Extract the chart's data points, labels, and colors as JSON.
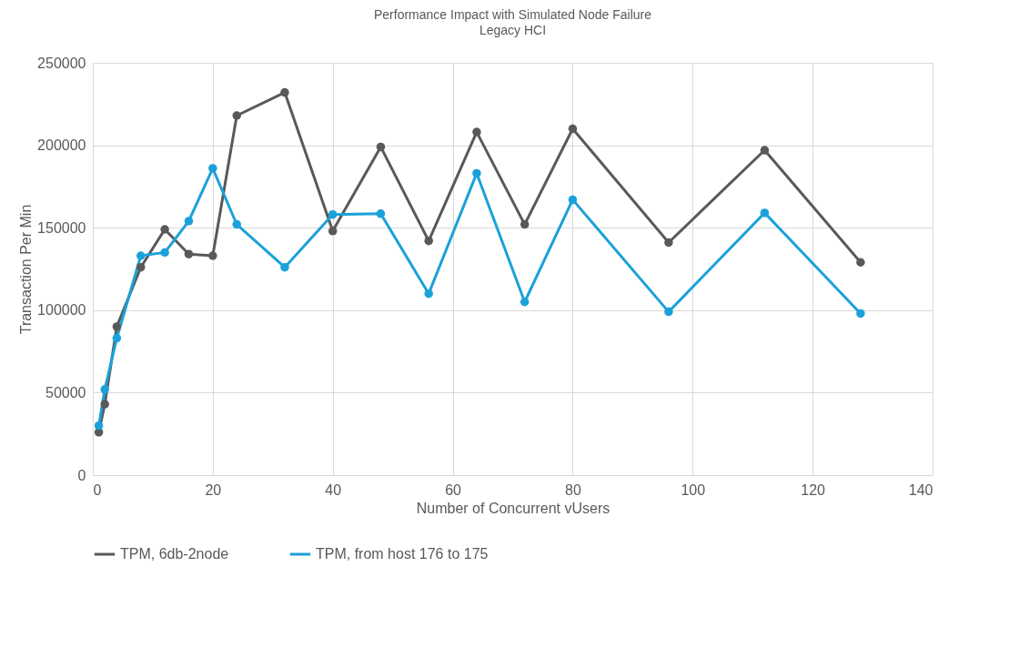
{
  "chart_data": {
    "type": "line",
    "title": "Performance Impact with Simulated Node Failure",
    "subtitle": "Legacy HCI",
    "xlabel": "Number of Concurrent vUsers",
    "ylabel": "Transaction Per Min",
    "x": [
      1,
      2,
      4,
      8,
      12,
      16,
      20,
      24,
      32,
      40,
      48,
      56,
      64,
      72,
      80,
      96,
      112,
      128
    ],
    "series": [
      {
        "name": "TPM, 6db-2node",
        "color": "#595959",
        "values": [
          26000,
          43000,
          90000,
          126000,
          149000,
          134000,
          133000,
          218000,
          232000,
          148000,
          199000,
          142000,
          208000,
          152000,
          210000,
          141000,
          197000,
          129000
        ]
      },
      {
        "name": "TPM, from host 176 to 175",
        "color": "#1ba1d9",
        "values": [
          30000,
          52000,
          83000,
          133000,
          135000,
          154000,
          186000,
          152000,
          126000,
          158000,
          158500,
          110000,
          183000,
          105000,
          167000,
          99000,
          159000,
          98000
        ]
      }
    ],
    "xlim": [
      0,
      140
    ],
    "xticks": [
      0,
      20,
      40,
      60,
      80,
      100,
      120,
      140
    ],
    "ylim": [
      0,
      250000
    ],
    "yticks": [
      0,
      50000,
      100000,
      150000,
      200000,
      250000
    ],
    "grid": true,
    "legend": "bottom",
    "marker": "circle",
    "line_style": "solid"
  }
}
